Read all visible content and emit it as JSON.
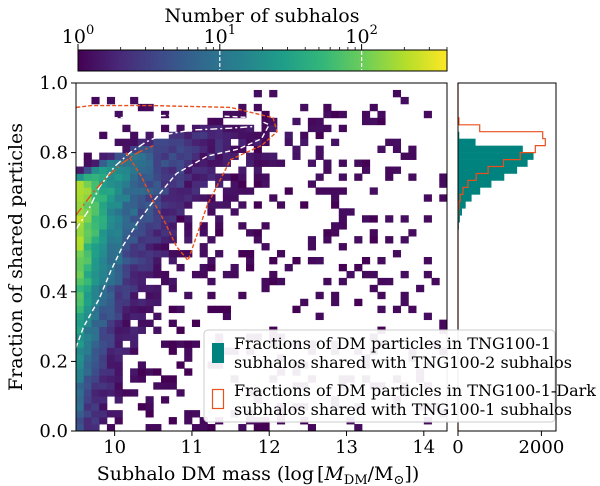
{
  "colorbar": {
    "label": "Number of subhalos",
    "scale": "log",
    "range": [
      1,
      400
    ],
    "ticks": [
      {
        "value": 1,
        "base": "10",
        "exp": "0"
      },
      {
        "value": 10,
        "base": "10",
        "exp": "1"
      },
      {
        "value": 100,
        "base": "10",
        "exp": "2"
      }
    ],
    "colormap": [
      "#440154",
      "#482878",
      "#3e4a89",
      "#31688e",
      "#26828e",
      "#1f9e89",
      "#35b779",
      "#6ece58",
      "#b5de2b",
      "#fde725"
    ]
  },
  "chart_data": {
    "type": "heatmap",
    "xlabel_prefix": "Subhalo DM mass (log",
    "xlabel_math": "M",
    "xlabel_sub": "DM",
    "xlabel_mid": "/M",
    "xlabel_sun": "⊙",
    "xlabel_suffix": "])",
    "ylabel": "Fraction of shared particles",
    "xlim": [
      9.5,
      14.3
    ],
    "ylim": [
      0.0,
      1.0
    ],
    "x_ticks": [
      "10",
      "11",
      "12",
      "13",
      "14"
    ],
    "x_tick_values": [
      10,
      11,
      12,
      13,
      14
    ],
    "y_ticks": [
      "0.0",
      "0.2",
      "0.4",
      "0.6",
      "0.8",
      "1.0"
    ],
    "y_tick_values": [
      0.0,
      0.2,
      0.4,
      0.6,
      0.8,
      1.0
    ],
    "bin_width_x": 0.1,
    "bin_width_y": 0.02,
    "ridge": [
      [
        9.5,
        0.7
      ],
      [
        10.0,
        0.76
      ],
      [
        10.5,
        0.81
      ],
      [
        11.0,
        0.84
      ],
      [
        11.5,
        0.855
      ],
      [
        12.0,
        0.865
      ],
      [
        13.0,
        0.87
      ],
      [
        14.0,
        0.87
      ]
    ],
    "contours": [
      {
        "name": "TNG100-1 inner",
        "color": "#ffffff",
        "dash": "7,3,2,3",
        "points": [
          [
            9.5,
            0.58
          ],
          [
            9.65,
            0.63
          ],
          [
            9.8,
            0.7
          ],
          [
            10.0,
            0.76
          ],
          [
            10.2,
            0.8
          ],
          [
            10.4,
            0.83
          ],
          [
            10.6,
            0.85
          ],
          [
            11.0,
            0.865
          ],
          [
            11.5,
            0.87
          ],
          [
            11.8,
            0.875
          ]
        ]
      },
      {
        "name": "TNG100-1 outer",
        "color": "#ffffff",
        "dash": "5,3",
        "points": [
          [
            9.5,
            0.24
          ],
          [
            9.6,
            0.3
          ],
          [
            9.8,
            0.38
          ],
          [
            9.95,
            0.46
          ],
          [
            10.1,
            0.53
          ],
          [
            10.3,
            0.6
          ],
          [
            10.5,
            0.66
          ],
          [
            10.8,
            0.74
          ],
          [
            11.2,
            0.79
          ],
          [
            11.6,
            0.81
          ],
          [
            11.9,
            0.84
          ],
          [
            12.0,
            0.88
          ],
          [
            11.8,
            0.9
          ],
          [
            11.0,
            0.91
          ],
          [
            10.0,
            0.9
          ],
          [
            9.5,
            0.89
          ]
        ]
      },
      {
        "name": "TNG100-1-Dark inner",
        "color": "#e8501c",
        "dash": "9,3,2,3",
        "points": [
          [
            9.5,
            0.62
          ],
          [
            9.7,
            0.68
          ],
          [
            9.9,
            0.73
          ],
          [
            10.1,
            0.77
          ],
          [
            10.3,
            0.8
          ],
          [
            10.5,
            0.82
          ]
        ]
      },
      {
        "name": "TNG100-1-Dark outer",
        "color": "#e8501c",
        "dash": "4,2",
        "points": [
          [
            10.15,
            0.8
          ],
          [
            10.35,
            0.73
          ],
          [
            10.5,
            0.66
          ],
          [
            10.65,
            0.6
          ],
          [
            10.8,
            0.53
          ],
          [
            10.95,
            0.49
          ],
          [
            11.2,
            0.65
          ],
          [
            11.5,
            0.78
          ],
          [
            11.9,
            0.82
          ],
          [
            12.1,
            0.86
          ],
          [
            12.05,
            0.9
          ],
          [
            11.5,
            0.93
          ],
          [
            10.5,
            0.935
          ],
          [
            9.7,
            0.935
          ],
          [
            9.5,
            0.93
          ]
        ]
      }
    ],
    "side_histogram": {
      "x_ticks": [
        "0",
        "2000"
      ],
      "x_tick_values": [
        0,
        2000
      ],
      "xlim": [
        0,
        2350
      ],
      "bin_width": 0.02,
      "series": [
        {
          "name": "Fractions of DM particles in TNG100-1 subhalos shared with TNG100-2 subhalos",
          "style": "filled",
          "color": "#00827f",
          "peak_fraction": 0.8,
          "sigma": 0.045,
          "peak_count": 1830
        },
        {
          "name": "Fractions of DM particles in TNG100-1-Dark subhalos shared with TNG100-1 subhalos",
          "style": "step",
          "color": "#e8501c",
          "peak_fraction": 0.845,
          "sigma": 0.035,
          "peak_count": 2150
        }
      ]
    },
    "legend": {
      "placement": "lower-right",
      "entries": [
        {
          "line1": "Fractions of DM particles in TNG100-1",
          "line2": "subhalos shared with TNG100-2 subhalos",
          "color": "#00827f",
          "style": "filled"
        },
        {
          "line1": "Fractions of DM particles in TNG100-1-Dark",
          "line2": "subhalos shared with TNG100-1 subhalos",
          "color": "#e8501c",
          "style": "outline"
        }
      ]
    }
  }
}
